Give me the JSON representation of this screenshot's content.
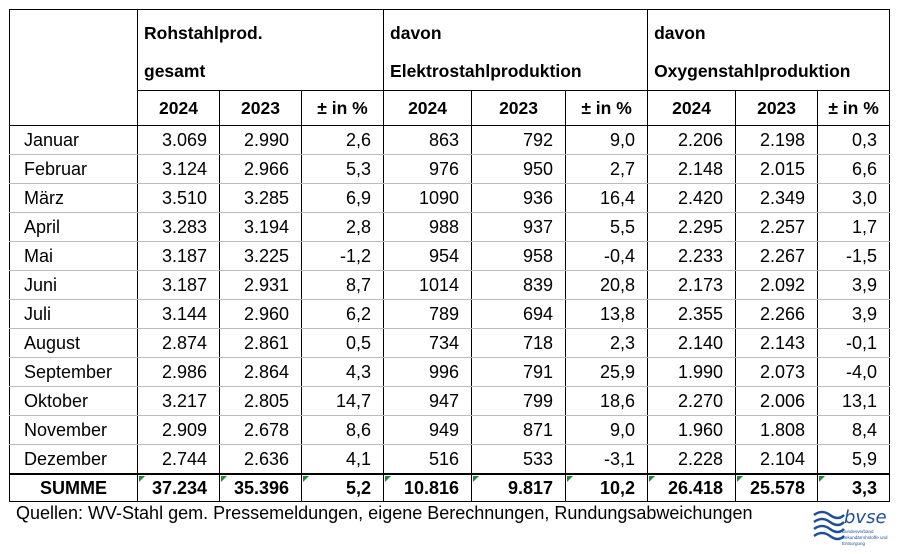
{
  "headers": {
    "group1": [
      "Rohstahlprod.",
      "gesamt"
    ],
    "group2": [
      "davon",
      "Elektrostahlproduktion"
    ],
    "group3": [
      "davon",
      "Oxygenstahlproduktion"
    ],
    "year_a": "2024",
    "year_b": "2023",
    "change": "± in %"
  },
  "rows": [
    {
      "month": "Januar",
      "cells": [
        "3.069",
        "2.990",
        "2,6",
        "863",
        "792",
        "9,0",
        "2.206",
        "2.198",
        "0,3"
      ]
    },
    {
      "month": "Februar",
      "cells": [
        "3.124",
        "2.966",
        "5,3",
        "976",
        "950",
        "2,7",
        "2.148",
        "2.015",
        "6,6"
      ]
    },
    {
      "month": "März",
      "cells": [
        "3.510",
        "3.285",
        "6,9",
        "1090",
        "936",
        "16,4",
        "2.420",
        "2.349",
        "3,0"
      ]
    },
    {
      "month": "April",
      "cells": [
        "3.283",
        "3.194",
        "2,8",
        "988",
        "937",
        "5,5",
        "2.295",
        "2.257",
        "1,7"
      ]
    },
    {
      "month": "Mai",
      "cells": [
        "3.187",
        "3.225",
        "-1,2",
        "954",
        "958",
        "-0,4",
        "2.233",
        "2.267",
        "-1,5"
      ]
    },
    {
      "month": "Juni",
      "cells": [
        "3.187",
        "2.931",
        "8,7",
        "1014",
        "839",
        "20,8",
        "2.173",
        "2.092",
        "3,9"
      ]
    },
    {
      "month": "Juli",
      "cells": [
        "3.144",
        "2.960",
        "6,2",
        "789",
        "694",
        "13,8",
        "2.355",
        "2.266",
        "3,9"
      ]
    },
    {
      "month": "August",
      "cells": [
        "2.874",
        "2.861",
        "0,5",
        "734",
        "718",
        "2,3",
        "2.140",
        "2.143",
        "-0,1"
      ]
    },
    {
      "month": "September",
      "cells": [
        "2.986",
        "2.864",
        "4,3",
        "996",
        "791",
        "25,9",
        "1.990",
        "2.073",
        "-4,0"
      ]
    },
    {
      "month": "Oktober",
      "cells": [
        "3.217",
        "2.805",
        "14,7",
        "947",
        "799",
        "18,6",
        "2.270",
        "2.006",
        "13,1"
      ]
    },
    {
      "month": "November",
      "cells": [
        "2.909",
        "2.678",
        "8,6",
        "949",
        "871",
        "9,0",
        "1.960",
        "1.808",
        "8,4"
      ]
    },
    {
      "month": "Dezember",
      "cells": [
        "2.744",
        "2.636",
        "4,1",
        "516",
        "533",
        "-3,1",
        "2.228",
        "2.104",
        "5,9"
      ]
    }
  ],
  "sum": {
    "label": "SUMME",
    "cells": [
      "37.234",
      "35.396",
      "5,2",
      "10.816",
      "9.817",
      "10,2",
      "26.418",
      "25.578",
      "3,3"
    ]
  },
  "footer": "Quellen: WV-Stahl gem. Pressemeldungen, eigene Berechnungen, Rundungsabweichungen",
  "logo": {
    "name": "bvse",
    "sub": "Bundesverband Sekundärrohstoffe und Entsorgung"
  },
  "colors": {
    "logo": "#1f4e99",
    "marker": "#1c8a3a"
  }
}
